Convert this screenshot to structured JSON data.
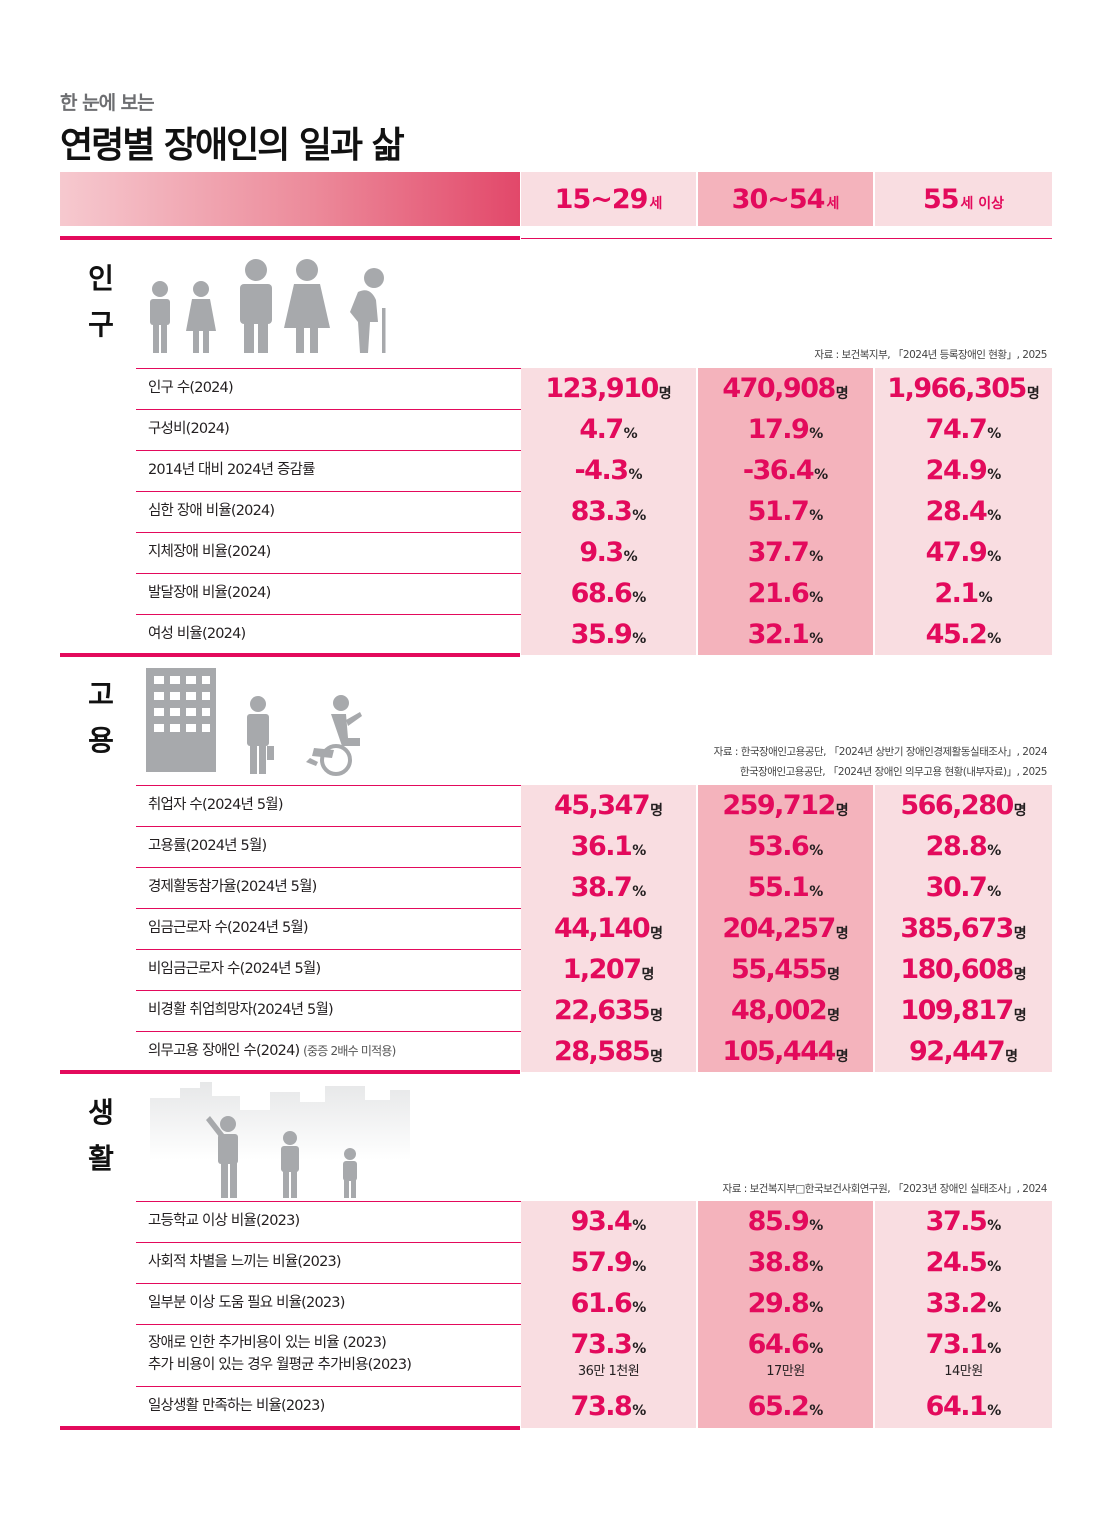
{
  "header": {
    "subtitle": "한 눈에 보는",
    "title": "연령별 장애인의 일과 삶"
  },
  "columns": [
    {
      "num": "15~29",
      "unit": "세"
    },
    {
      "num": "30~54",
      "unit": "세"
    },
    {
      "num": "55",
      "unit": "세 이상"
    }
  ],
  "sections": {
    "population": {
      "label": [
        "인",
        "구"
      ],
      "icon": "people-age-icons",
      "source": "자료 : 보건복지부, 「2024년 등록장애인 현황」, 2025",
      "rows": [
        {
          "label": "인구 수(2024)",
          "values": [
            {
              "n": "123,910",
              "u": "명"
            },
            {
              "n": "470,908",
              "u": "명"
            },
            {
              "n": "1,966,305",
              "u": "명"
            }
          ]
        },
        {
          "label": "구성비(2024)",
          "values": [
            {
              "n": "4.7",
              "u": "%"
            },
            {
              "n": "17.9",
              "u": "%"
            },
            {
              "n": "74.7",
              "u": "%"
            }
          ]
        },
        {
          "label": "2014년 대비 2024년 증감률",
          "values": [
            {
              "n": "-4.3",
              "u": "%"
            },
            {
              "n": "-36.4",
              "u": "%"
            },
            {
              "n": "24.9",
              "u": "%"
            }
          ]
        },
        {
          "label": "심한 장애 비율(2024)",
          "values": [
            {
              "n": "83.3",
              "u": "%"
            },
            {
              "n": "51.7",
              "u": "%"
            },
            {
              "n": "28.4",
              "u": "%"
            }
          ]
        },
        {
          "label": "지체장애 비율(2024)",
          "values": [
            {
              "n": "9.3",
              "u": "%"
            },
            {
              "n": "37.7",
              "u": "%"
            },
            {
              "n": "47.9",
              "u": "%"
            }
          ]
        },
        {
          "label": "발달장애 비율(2024)",
          "values": [
            {
              "n": "68.6",
              "u": "%"
            },
            {
              "n": "21.6",
              "u": "%"
            },
            {
              "n": "2.1",
              "u": "%"
            }
          ]
        },
        {
          "label": "여성 비율(2024)",
          "values": [
            {
              "n": "35.9",
              "u": "%"
            },
            {
              "n": "32.1",
              "u": "%"
            },
            {
              "n": "45.2",
              "u": "%"
            }
          ]
        }
      ]
    },
    "employment": {
      "label": [
        "고",
        "용"
      ],
      "icon": "office-building-icon",
      "source1": "자료 : 한국장애인고용공단, 「2024년 상반기 장애인경제활동실태조사」, 2024",
      "source2": "한국장애인고용공단, 「2024년 장애인 의무고용 현황(내부자료)」, 2025",
      "rows": [
        {
          "label": "취업자 수(2024년 5월)",
          "values": [
            {
              "n": "45,347",
              "u": "명"
            },
            {
              "n": "259,712",
              "u": "명"
            },
            {
              "n": "566,280",
              "u": "명"
            }
          ]
        },
        {
          "label": "고용률(2024년 5월)",
          "values": [
            {
              "n": "36.1",
              "u": "%"
            },
            {
              "n": "53.6",
              "u": "%"
            },
            {
              "n": "28.8",
              "u": "%"
            }
          ]
        },
        {
          "label": "경제활동참가율(2024년 5월)",
          "values": [
            {
              "n": "38.7",
              "u": "%"
            },
            {
              "n": "55.1",
              "u": "%"
            },
            {
              "n": "30.7",
              "u": "%"
            }
          ]
        },
        {
          "label": "임금근로자 수(2024년 5월)",
          "values": [
            {
              "n": "44,140",
              "u": "명"
            },
            {
              "n": "204,257",
              "u": "명"
            },
            {
              "n": "385,673",
              "u": "명"
            }
          ]
        },
        {
          "label": "비임금근로자 수(2024년 5월)",
          "values": [
            {
              "n": "1,207",
              "u": "명"
            },
            {
              "n": "55,455",
              "u": "명"
            },
            {
              "n": "180,608",
              "u": "명"
            }
          ]
        },
        {
          "label": "비경활 취업희망자(2024년 5월)",
          "values": [
            {
              "n": "22,635",
              "u": "명"
            },
            {
              "n": "48,002",
              "u": "명"
            },
            {
              "n": "109,817",
              "u": "명"
            }
          ]
        },
        {
          "label": "의무고용 장애인 수(2024)",
          "note": "(중증 2배수 미적용)",
          "values": [
            {
              "n": "28,585",
              "u": "명"
            },
            {
              "n": "105,444",
              "u": "명"
            },
            {
              "n": "92,447",
              "u": "명"
            }
          ]
        }
      ]
    },
    "life": {
      "label": [
        "생",
        "활"
      ],
      "icon": "city-people-icon",
      "source": "자료 : 보건복지부□한국보건사회연구원, 「2023년 장애인 실태조사」, 2024",
      "rows": [
        {
          "label": "고등학교 이상 비율(2023)",
          "values": [
            {
              "n": "93.4",
              "u": "%"
            },
            {
              "n": "85.9",
              "u": "%"
            },
            {
              "n": "37.5",
              "u": "%"
            }
          ]
        },
        {
          "label": "사회적 차별을 느끼는 비율(2023)",
          "values": [
            {
              "n": "57.9",
              "u": "%"
            },
            {
              "n": "38.8",
              "u": "%"
            },
            {
              "n": "24.5",
              "u": "%"
            }
          ]
        },
        {
          "label": "일부분 이상 도움 필요 비율(2023)",
          "values": [
            {
              "n": "61.6",
              "u": "%"
            },
            {
              "n": "29.8",
              "u": "%"
            },
            {
              "n": "33.2",
              "u": "%"
            }
          ]
        },
        {
          "label": "장애로 인한 추가비용이 있는 비율 (2023)",
          "label2": "추가 비용이 있는 경우 월평균 추가비용(2023)",
          "values": [
            {
              "n": "73.3",
              "u": "%",
              "sub": "36만 1천원"
            },
            {
              "n": "64.6",
              "u": "%",
              "sub": "17만원"
            },
            {
              "n": "73.1",
              "u": "%",
              "sub": "14만원"
            }
          ]
        },
        {
          "label": "일상생활 만족하는 비율(2023)",
          "values": [
            {
              "n": "73.8",
              "u": "%"
            },
            {
              "n": "65.2",
              "u": "%"
            },
            {
              "n": "64.1",
              "u": "%"
            }
          ]
        }
      ]
    }
  },
  "colors": {
    "accent": "#e30a5c",
    "light": "#f9dde1",
    "mid": "#f4b3bc",
    "icon": "#a7a9ac"
  }
}
